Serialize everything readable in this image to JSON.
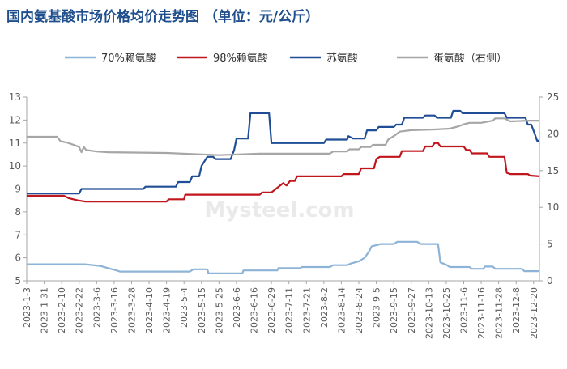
{
  "chart_data": {
    "type": "line",
    "title": "国内氨基酸市场价格均价走势图 （单位：元/公斤）",
    "watermark": "Mysteel.com",
    "x_tick_labels": [
      "2023-1-3",
      "2023-1-31",
      "2023-2-10",
      "2023-2-22",
      "2023-3-6",
      "2023-3-16",
      "2023-3-28",
      "2023-4-10",
      "2023-4-19",
      "2023-5-4",
      "2023-5-15",
      "2023-5-25",
      "2023-6-6",
      "2023-6-16",
      "2023-6-29",
      "2023-7-11",
      "2023-7-21",
      "2023-8-2",
      "2023-8-14",
      "2023-8-24",
      "2023-9-5",
      "2023-9-15",
      "2023-9-27",
      "2023-10-13",
      "2023-10-25",
      "2023-11-6",
      "2023-11-16",
      "2023-11-28",
      "2023-12-8",
      "2023-12-20"
    ],
    "y_left": {
      "min": 5,
      "max": 13,
      "ticks": [
        5,
        6,
        7,
        8,
        9,
        10,
        11,
        12,
        13
      ]
    },
    "y_right": {
      "min": 0,
      "max": 25,
      "ticks": [
        0,
        5,
        10,
        15,
        20,
        25
      ]
    },
    "legend_position": "top",
    "grid": false,
    "colors": {
      "s70": "#8db3d6",
      "s98": "#c0161e",
      "thr": "#1f4e96",
      "met": "#a6a6a6",
      "axis": "#a6a6a6",
      "title": "#1f4e8c"
    },
    "series": [
      {
        "name": "70%赖氨酸",
        "axis": "left",
        "color_key": "s70",
        "points": [
          [
            0,
            5.72
          ],
          [
            5,
            5.72
          ],
          [
            6.3,
            5.65
          ],
          [
            7,
            5.55
          ],
          [
            7.7,
            5.45
          ],
          [
            8,
            5.4
          ],
          [
            14,
            5.4
          ],
          [
            14.3,
            5.5
          ],
          [
            15.5,
            5.5
          ],
          [
            15.6,
            5.32
          ],
          [
            18.5,
            5.32
          ],
          [
            18.6,
            5.45
          ],
          [
            21.5,
            5.45
          ],
          [
            21.6,
            5.55
          ],
          [
            23.5,
            5.55
          ],
          [
            23.6,
            5.6
          ],
          [
            26,
            5.6
          ],
          [
            26.3,
            5.68
          ],
          [
            27.5,
            5.68
          ],
          [
            27.8,
            5.75
          ],
          [
            28.5,
            5.85
          ],
          [
            29,
            6.0
          ],
          [
            29.4,
            6.3
          ],
          [
            29.6,
            6.5
          ],
          [
            30,
            6.55
          ],
          [
            30.4,
            6.6
          ],
          [
            31.5,
            6.6
          ],
          [
            31.8,
            6.7
          ],
          [
            33.5,
            6.7
          ],
          [
            33.8,
            6.6
          ],
          [
            35.3,
            6.6
          ],
          [
            35.5,
            5.8
          ],
          [
            36,
            5.7
          ],
          [
            36.3,
            5.6
          ],
          [
            38,
            5.6
          ],
          [
            38.2,
            5.52
          ],
          [
            39.2,
            5.52
          ],
          [
            39.3,
            5.62
          ],
          [
            40,
            5.62
          ],
          [
            40.2,
            5.52
          ],
          [
            42.5,
            5.52
          ],
          [
            42.7,
            5.42
          ],
          [
            44,
            5.42
          ]
        ]
      },
      {
        "name": "98%赖氨酸",
        "axis": "left",
        "color_key": "s98",
        "points": [
          [
            0,
            8.7
          ],
          [
            3.2,
            8.7
          ],
          [
            3.6,
            8.6
          ],
          [
            4.4,
            8.5
          ],
          [
            5,
            8.45
          ],
          [
            12,
            8.45
          ],
          [
            12.2,
            8.55
          ],
          [
            13.5,
            8.55
          ],
          [
            13.6,
            8.75
          ],
          [
            20,
            8.75
          ],
          [
            20.2,
            8.85
          ],
          [
            21,
            8.85
          ],
          [
            21.5,
            9.05
          ],
          [
            22,
            9.25
          ],
          [
            22.3,
            9.15
          ],
          [
            22.6,
            9.35
          ],
          [
            23,
            9.35
          ],
          [
            23.2,
            9.55
          ],
          [
            27,
            9.55
          ],
          [
            27.2,
            9.65
          ],
          [
            28.5,
            9.65
          ],
          [
            28.7,
            9.9
          ],
          [
            29.8,
            9.9
          ],
          [
            30,
            10.3
          ],
          [
            30.3,
            10.4
          ],
          [
            32,
            10.4
          ],
          [
            32.2,
            10.65
          ],
          [
            34,
            10.65
          ],
          [
            34.2,
            10.85
          ],
          [
            34.8,
            10.85
          ],
          [
            35,
            11.0
          ],
          [
            35.3,
            11.0
          ],
          [
            35.5,
            10.85
          ],
          [
            37.5,
            10.85
          ],
          [
            37.7,
            10.7
          ],
          [
            38,
            10.7
          ],
          [
            38.2,
            10.55
          ],
          [
            39.5,
            10.55
          ],
          [
            39.7,
            10.4
          ],
          [
            41,
            10.4
          ],
          [
            41.2,
            9.7
          ],
          [
            41.5,
            9.65
          ],
          [
            43,
            9.65
          ],
          [
            43.2,
            9.58
          ],
          [
            44,
            9.55
          ]
        ]
      },
      {
        "name": "苏氨酸",
        "axis": "left",
        "color_key": "s98_thr",
        "color_key_real": "thr",
        "points": [
          [
            0,
            8.8
          ],
          [
            4.5,
            8.8
          ],
          [
            4.7,
            9.0
          ],
          [
            10,
            9.0
          ],
          [
            10.2,
            9.1
          ],
          [
            12.8,
            9.1
          ],
          [
            13,
            9.3
          ],
          [
            14,
            9.3
          ],
          [
            14.2,
            9.55
          ],
          [
            14.8,
            9.55
          ],
          [
            15,
            10.0
          ],
          [
            15.5,
            10.4
          ],
          [
            16,
            10.4
          ],
          [
            16.2,
            10.3
          ],
          [
            17.5,
            10.3
          ],
          [
            17.8,
            10.7
          ],
          [
            18,
            11.2
          ],
          [
            19,
            11.2
          ],
          [
            19.2,
            12.3
          ],
          [
            20.8,
            12.3
          ],
          [
            21,
            11.0
          ],
          [
            25.5,
            11.0
          ],
          [
            25.7,
            11.15
          ],
          [
            27.5,
            11.15
          ],
          [
            27.6,
            11.3
          ],
          [
            28,
            11.2
          ],
          [
            29,
            11.2
          ],
          [
            29.2,
            11.55
          ],
          [
            30,
            11.55
          ],
          [
            30.2,
            11.7
          ],
          [
            31.5,
            11.7
          ],
          [
            31.7,
            11.8
          ],
          [
            32.2,
            11.8
          ],
          [
            32.4,
            12.1
          ],
          [
            34,
            12.1
          ],
          [
            34.2,
            12.2
          ],
          [
            35,
            12.2
          ],
          [
            35.2,
            12.1
          ],
          [
            36.4,
            12.1
          ],
          [
            36.6,
            12.4
          ],
          [
            37.2,
            12.4
          ],
          [
            37.4,
            12.3
          ],
          [
            41,
            12.3
          ],
          [
            41.2,
            12.1
          ],
          [
            42.8,
            12.1
          ],
          [
            43,
            11.8
          ],
          [
            43.3,
            11.8
          ],
          [
            43.6,
            11.4
          ],
          [
            43.8,
            11.1
          ],
          [
            44,
            11.1
          ]
        ]
      },
      {
        "name": "蛋氨酸（右侧）",
        "axis": "right",
        "color_key": "met",
        "points": [
          [
            0,
            19.6
          ],
          [
            2.6,
            19.6
          ],
          [
            2.9,
            19.0
          ],
          [
            3.5,
            18.8
          ],
          [
            4.2,
            18.4
          ],
          [
            4.5,
            18.2
          ],
          [
            4.7,
            17.5
          ],
          [
            4.9,
            18.2
          ],
          [
            5.1,
            17.8
          ],
          [
            6,
            17.6
          ],
          [
            7,
            17.5
          ],
          [
            12,
            17.4
          ],
          [
            15,
            17.2
          ],
          [
            16.5,
            17.1
          ],
          [
            20,
            17.3
          ],
          [
            26,
            17.3
          ],
          [
            26.3,
            17.6
          ],
          [
            27.5,
            17.6
          ],
          [
            27.7,
            17.9
          ],
          [
            28.5,
            17.9
          ],
          [
            28.7,
            18.2
          ],
          [
            29.5,
            18.2
          ],
          [
            29.7,
            18.5
          ],
          [
            30.8,
            18.5
          ],
          [
            31,
            19.2
          ],
          [
            31.6,
            19.8
          ],
          [
            32,
            20.3
          ],
          [
            33,
            20.5
          ],
          [
            35,
            20.6
          ],
          [
            36.3,
            20.7
          ],
          [
            37,
            21.0
          ],
          [
            37.5,
            21.3
          ],
          [
            38,
            21.5
          ],
          [
            39,
            21.5
          ],
          [
            40,
            21.8
          ],
          [
            40.2,
            22.1
          ],
          [
            41,
            22.1
          ],
          [
            41.5,
            21.7
          ],
          [
            43,
            21.8
          ],
          [
            44,
            21.8
          ]
        ]
      }
    ]
  }
}
